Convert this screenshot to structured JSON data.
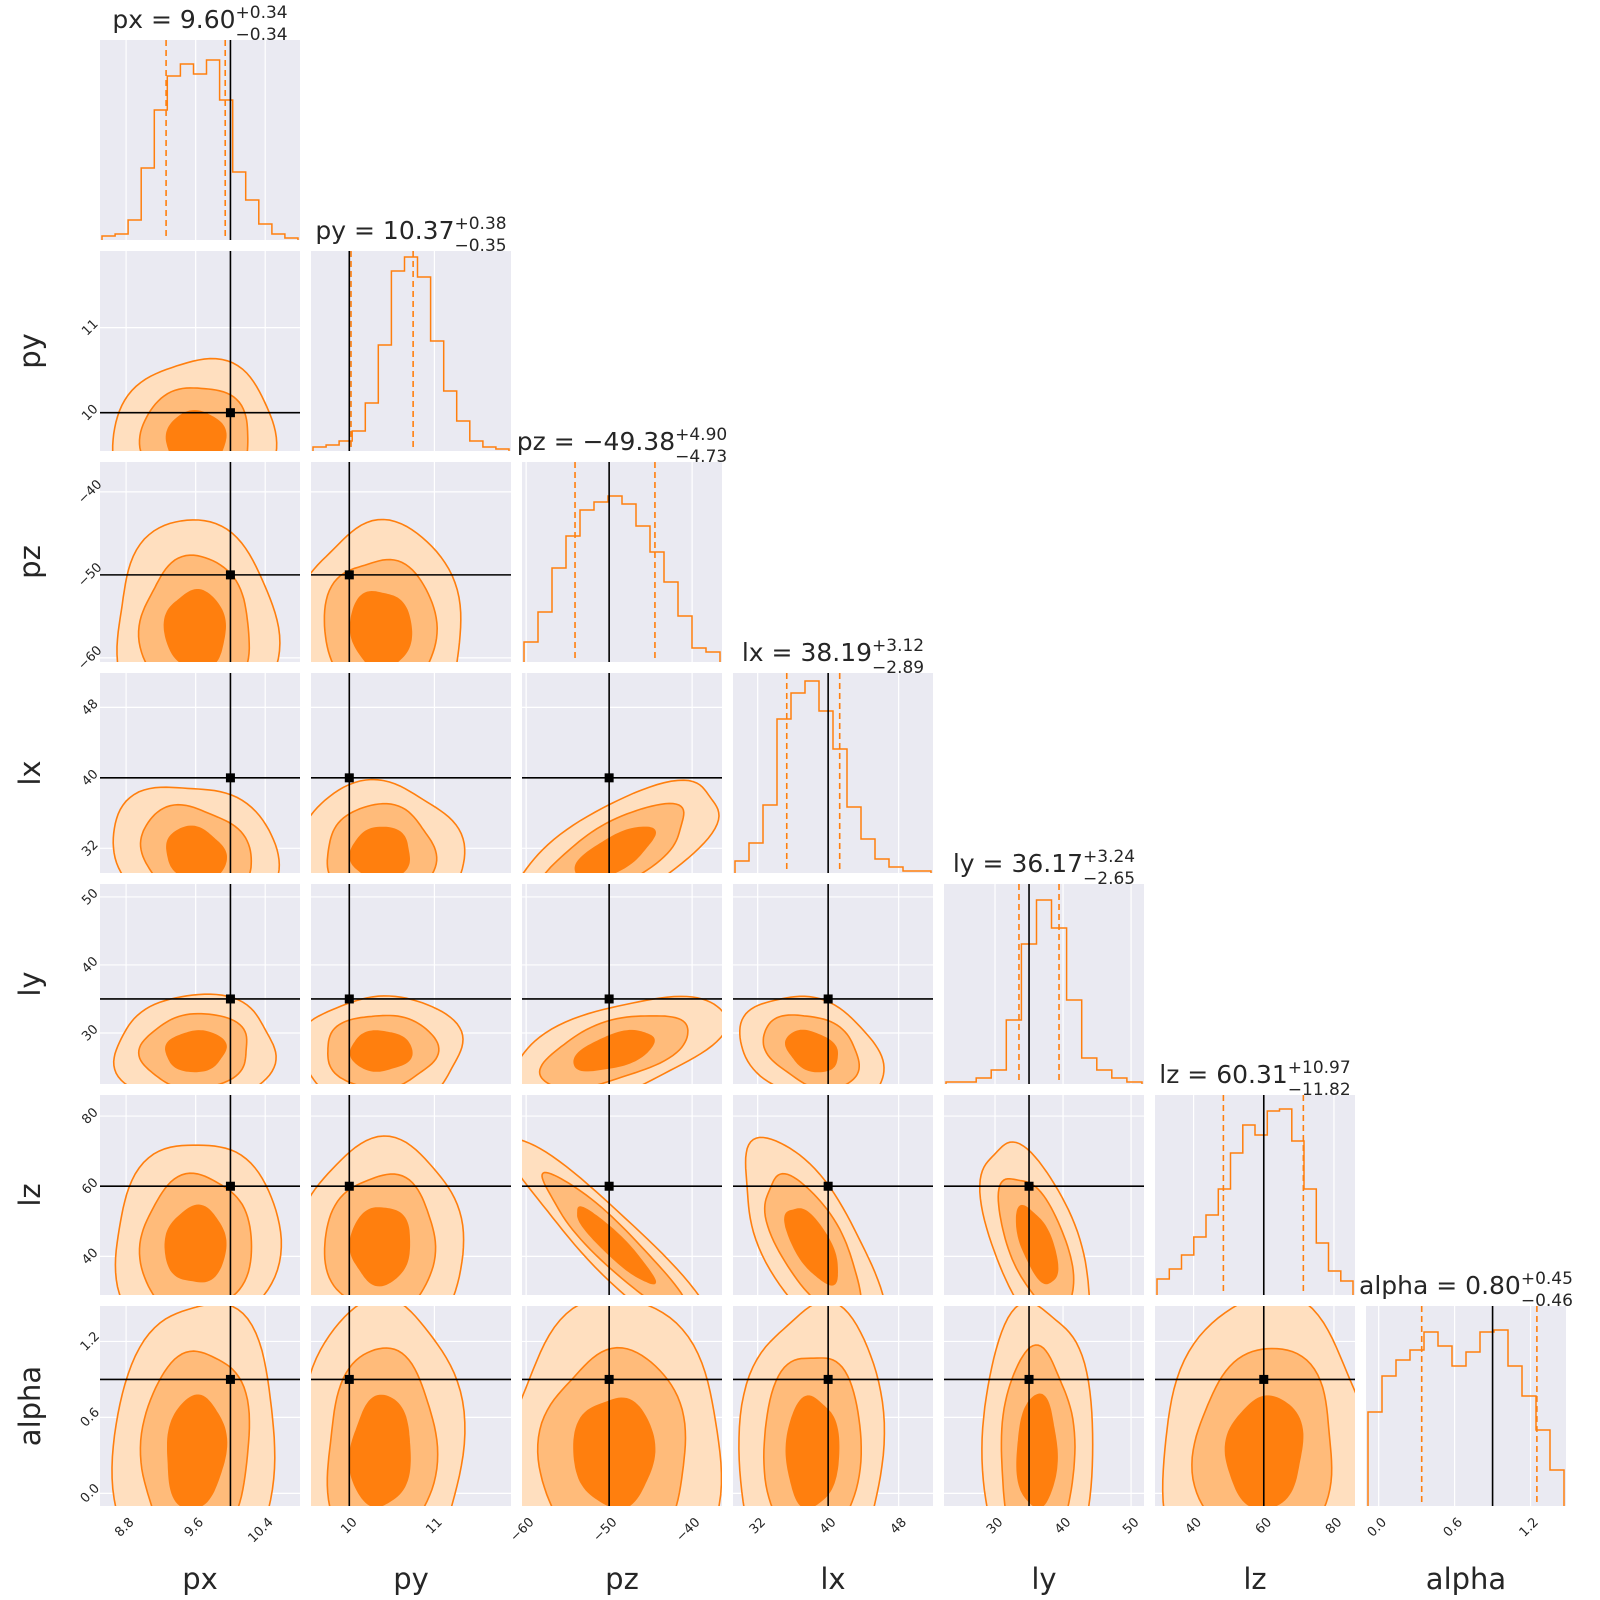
{
  "chart_data": {
    "type": "corner",
    "parameters": [
      "px",
      "py",
      "pz",
      "lx",
      "ly",
      "lz",
      "alpha"
    ],
    "axis_labels": [
      "px",
      "py",
      "pz",
      "lx",
      "ly",
      "lz",
      "alpha"
    ],
    "ranges": [
      [
        8.5,
        10.8
      ],
      [
        9.55,
        11.9
      ],
      [
        -60.5,
        -36.4
      ],
      [
        29.2,
        51.9
      ],
      [
        22.5,
        51.9
      ],
      [
        29.0,
        86.0
      ],
      [
        -0.1,
        1.48
      ]
    ],
    "ticks": [
      [
        "8.8",
        "9.6",
        "10.4"
      ],
      [
        "10",
        "11"
      ],
      [
        "−60",
        "−50",
        "−40"
      ],
      [
        "32",
        "40",
        "48"
      ],
      [
        "30",
        "40",
        "50"
      ],
      [
        "40",
        "60",
        "80"
      ],
      [
        "0.0",
        "0.6",
        "1.2"
      ]
    ],
    "tick_values": [
      [
        8.8,
        9.6,
        10.4
      ],
      [
        10,
        11
      ],
      [
        -60,
        -50,
        -40
      ],
      [
        32,
        40,
        48
      ],
      [
        30,
        40,
        50
      ],
      [
        40,
        60,
        80
      ],
      [
        0.0,
        0.6,
        1.2
      ]
    ],
    "truths": [
      10.0,
      10.0,
      -50.0,
      40.0,
      35.0,
      60.0,
      0.9
    ],
    "medians": [
      9.6,
      10.37,
      -49.38,
      38.19,
      36.17,
      60.31,
      0.8
    ],
    "titles": [
      {
        "name": "px",
        "value": "9.60",
        "plus": "+0.34",
        "minus": "−0.34"
      },
      {
        "name": "py",
        "value": "10.37",
        "plus": "+0.38",
        "minus": "−0.35"
      },
      {
        "name": "pz",
        "value": "−49.38",
        "plus": "+4.90",
        "minus": "−4.73"
      },
      {
        "name": "lx",
        "value": "38.19",
        "plus": "+3.12",
        "minus": "−2.89"
      },
      {
        "name": "ly",
        "value": "36.17",
        "plus": "+3.24",
        "minus": "−2.65"
      },
      {
        "name": "lz",
        "value": "60.31",
        "plus": "+10.97",
        "minus": "−11.82"
      },
      {
        "name": "alpha",
        "value": "0.80",
        "plus": "+0.45",
        "minus": "−0.46"
      }
    ],
    "histograms": [
      [
        0.02,
        0.03,
        0.1,
        0.36,
        0.65,
        0.82,
        0.88,
        0.83,
        0.9,
        0.7,
        0.34,
        0.2,
        0.08,
        0.03,
        0.01
      ],
      [
        0.02,
        0.03,
        0.05,
        0.1,
        0.24,
        0.53,
        0.9,
        0.97,
        0.87,
        0.55,
        0.3,
        0.15,
        0.05,
        0.02,
        0.01
      ],
      [
        0.1,
        0.25,
        0.47,
        0.63,
        0.76,
        0.8,
        0.83,
        0.79,
        0.68,
        0.55,
        0.4,
        0.23,
        0.07,
        0.05
      ],
      [
        0.06,
        0.15,
        0.34,
        0.77,
        0.9,
        0.96,
        0.81,
        0.62,
        0.33,
        0.17,
        0.07,
        0.03,
        0.01,
        0.01
      ],
      [
        0.01,
        0.01,
        0.03,
        0.07,
        0.32,
        0.7,
        0.92,
        0.78,
        0.42,
        0.13,
        0.07,
        0.03,
        0.01
      ],
      [
        0.08,
        0.13,
        0.2,
        0.29,
        0.4,
        0.53,
        0.71,
        0.85,
        0.8,
        0.92,
        0.93,
        0.77,
        0.53,
        0.26,
        0.12,
        0.07
      ],
      [
        0.47,
        0.65,
        0.73,
        0.78,
        0.87,
        0.8,
        0.7,
        0.77,
        0.87,
        0.88,
        0.7,
        0.55,
        0.38,
        0.18
      ]
    ],
    "legend": "none",
    "grid": true,
    "colors": {
      "line": "#ff7f0e",
      "fill_dark": "#ff7f0e",
      "fill_mid": "#ffbb7a",
      "fill_light": "#ffdfbf",
      "panel_bg": "#eaeaf2",
      "truth": "#000000",
      "grid": "#ffffff"
    }
  }
}
